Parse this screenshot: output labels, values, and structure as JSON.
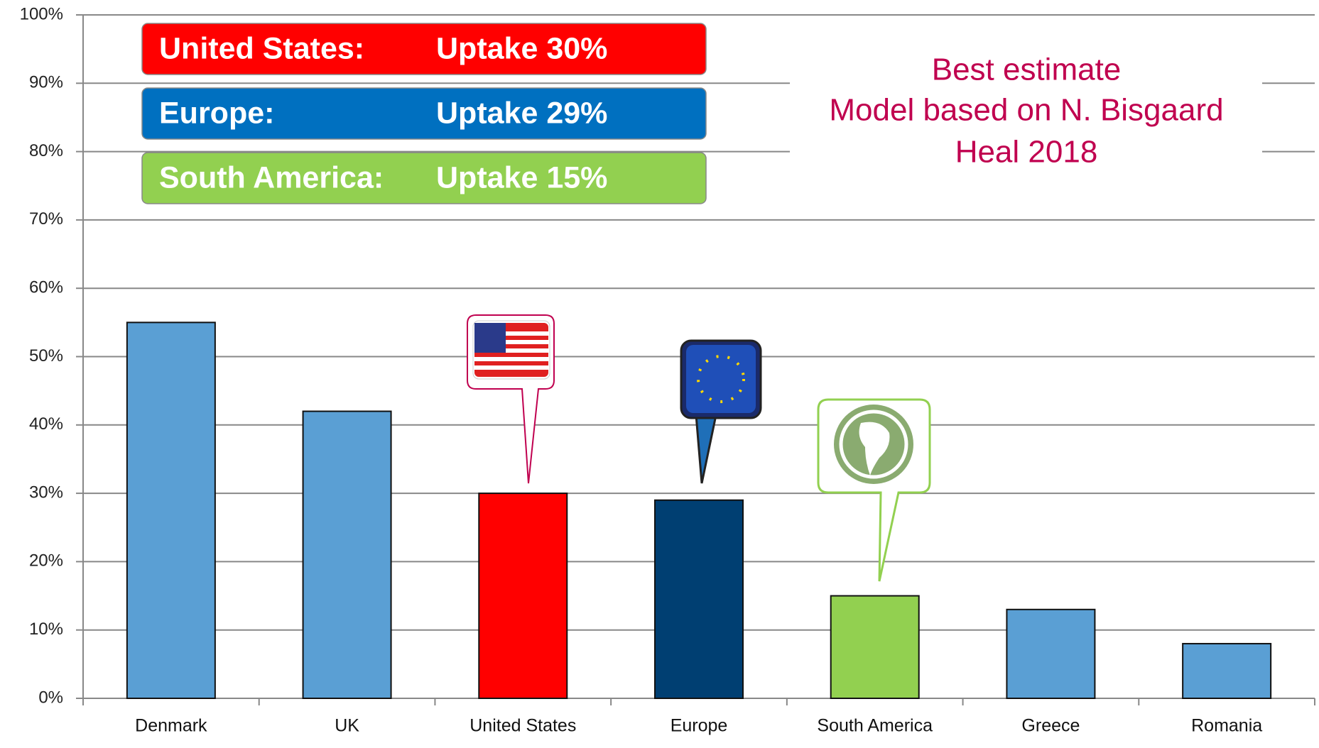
{
  "chart_data": {
    "type": "bar",
    "categories": [
      "Denmark",
      "UK",
      "United States",
      "Europe",
      "South America",
      "Greece",
      "Romania"
    ],
    "values": [
      55,
      42,
      30,
      29,
      15,
      13,
      8
    ],
    "colors": [
      "#5a9fd4",
      "#5a9fd4",
      "#ff0000",
      "#003f72",
      "#92d050",
      "#5a9fd4",
      "#5a9fd4"
    ],
    "ylim": [
      0,
      100
    ],
    "yticks": [
      {
        "value": 0,
        "label": "0%"
      },
      {
        "value": 10,
        "label": "10%"
      },
      {
        "value": 20,
        "label": "20%"
      },
      {
        "value": 30,
        "label": "30%"
      },
      {
        "value": 40,
        "label": "40%"
      },
      {
        "value": 50,
        "label": "50%"
      },
      {
        "value": 60,
        "label": "60%"
      },
      {
        "value": 70,
        "label": "70%"
      },
      {
        "value": 80,
        "label": "80%"
      },
      {
        "value": 90,
        "label": "90%"
      },
      {
        "value": 100,
        "label": "100%"
      }
    ],
    "grid": true,
    "boxes": [
      {
        "region": "United States:",
        "text": "Uptake 30%",
        "color": "#ff0000"
      },
      {
        "region": "Europe:",
        "text": "Uptake 29%",
        "color": "#0070c0"
      },
      {
        "region": "South America:",
        "text": "Uptake 15%",
        "color": "#92d050"
      }
    ],
    "annotation": [
      "Best estimate",
      "Model based on N. Bisgaard",
      "Heal 2018"
    ]
  }
}
